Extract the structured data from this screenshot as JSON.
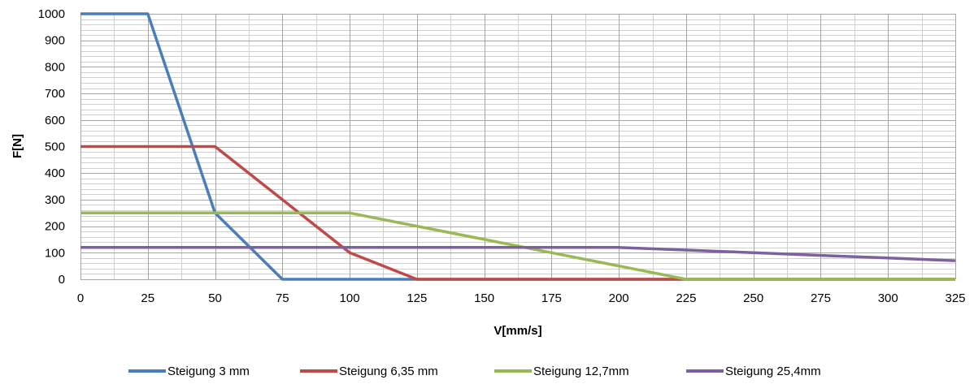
{
  "chart_data": {
    "type": "line",
    "title": "",
    "xlabel": "V[mm/s]",
    "ylabel": "F[N]",
    "xlim": [
      0,
      325
    ],
    "ylim": [
      0,
      1000
    ],
    "x_ticks": [
      "0",
      "25",
      "50",
      "75",
      "100",
      "125",
      "150",
      "175",
      "200",
      "225",
      "250",
      "275",
      "300",
      "325"
    ],
    "y_ticks": [
      "0",
      "100",
      "200",
      "300",
      "400",
      "500",
      "600",
      "700",
      "800",
      "900",
      "1000"
    ],
    "x_minor_step": 12.5,
    "y_minor_step": 20,
    "grid": true,
    "legend_position": "bottom",
    "series": [
      {
        "name": "Steigung 3 mm",
        "color": "#4a7ebb",
        "points": [
          [
            0,
            1000
          ],
          [
            25,
            1000
          ],
          [
            50,
            250
          ],
          [
            75,
            0
          ],
          [
            325,
            0
          ]
        ]
      },
      {
        "name": "Steigung 6,35 mm",
        "color": "#be4b48",
        "points": [
          [
            0,
            500
          ],
          [
            50,
            500
          ],
          [
            75,
            300
          ],
          [
            100,
            100
          ],
          [
            125,
            0
          ],
          [
            325,
            0
          ]
        ]
      },
      {
        "name": "Steigung 12,7mm",
        "color": "#98b954",
        "points": [
          [
            0,
            250
          ],
          [
            100,
            250
          ],
          [
            125,
            200
          ],
          [
            150,
            150
          ],
          [
            175,
            100
          ],
          [
            200,
            50
          ],
          [
            225,
            0
          ],
          [
            325,
            0
          ]
        ]
      },
      {
        "name": "Steigung 25,4mm",
        "color": "#7d60a0",
        "points": [
          [
            0,
            120
          ],
          [
            200,
            120
          ],
          [
            225,
            110
          ],
          [
            250,
            100
          ],
          [
            275,
            90
          ],
          [
            300,
            80
          ],
          [
            325,
            70
          ]
        ]
      }
    ]
  }
}
